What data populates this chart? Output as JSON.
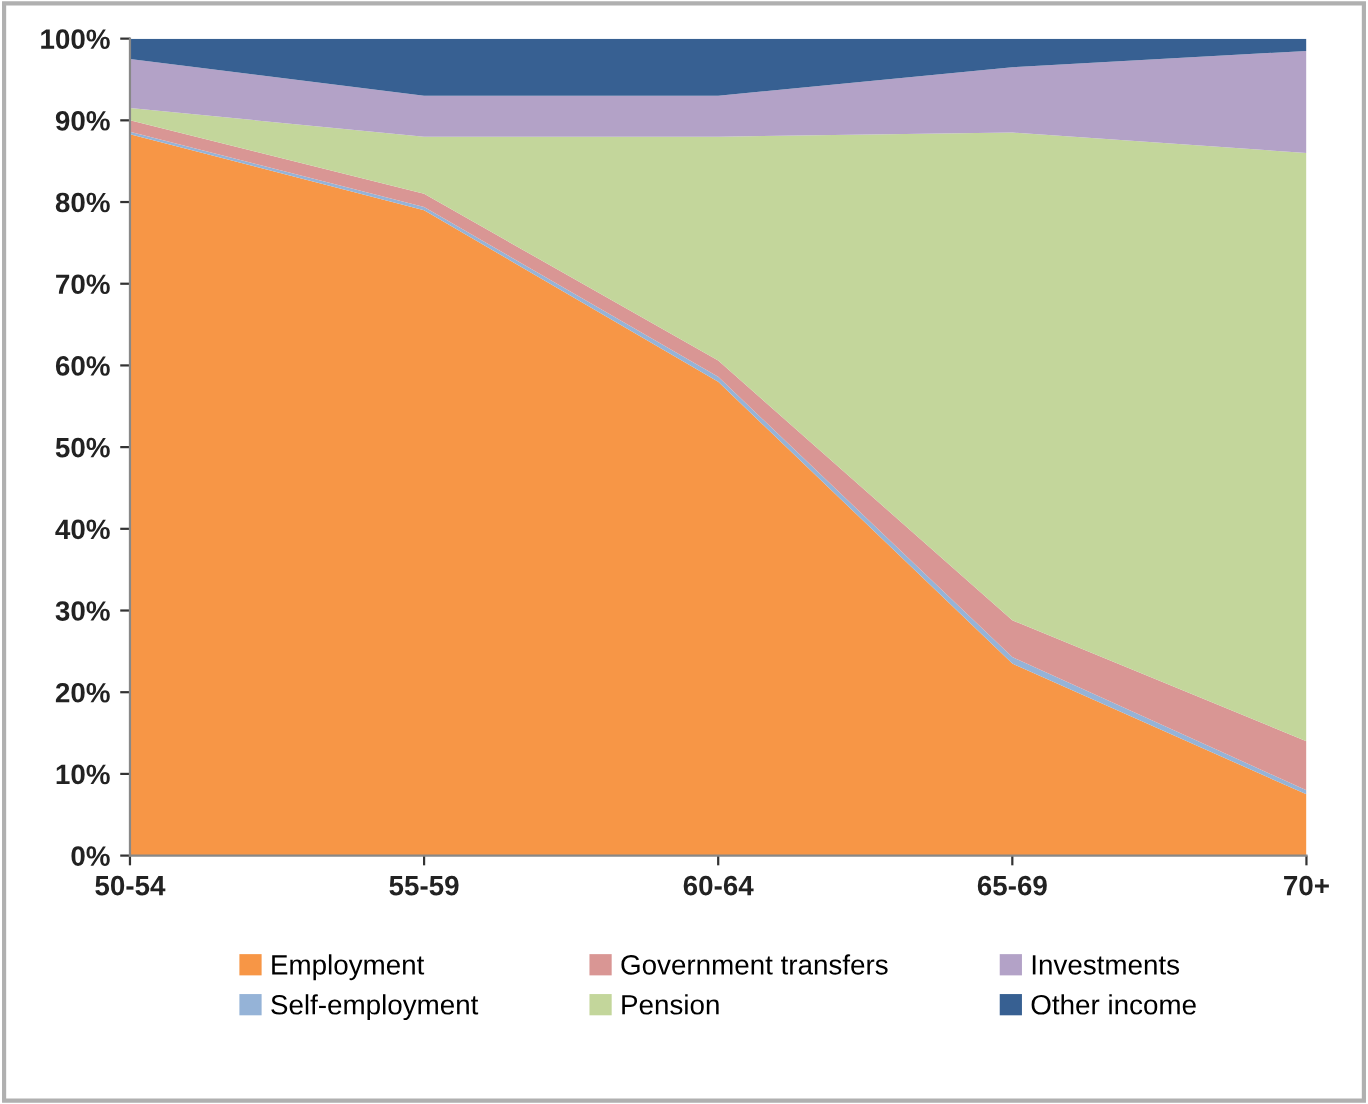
{
  "chart_data": {
    "type": "area",
    "stacked": true,
    "categories": [
      "50-54",
      "55-59",
      "60-64",
      "65-69",
      "70+"
    ],
    "series": [
      {
        "name": "Employment",
        "color": "#f79646",
        "values": [
          88.3,
          79,
          58,
          23.5,
          7.5
        ]
      },
      {
        "name": "Self-employment",
        "color": "#95b3d7",
        "values": [
          0.3,
          0.4,
          0.6,
          0.8,
          0.5
        ]
      },
      {
        "name": "Government transfers",
        "color": "#d99694",
        "values": [
          1.4,
          1.6,
          2,
          4.5,
          6
        ]
      },
      {
        "name": "Pension",
        "color": "#c3d69b",
        "values": [
          1.5,
          7,
          27.4,
          59.7,
          72
        ]
      },
      {
        "name": "Investments",
        "color": "#b3a2c7",
        "values": [
          6,
          5,
          5,
          8,
          12.5
        ]
      },
      {
        "name": "Other income",
        "color": "#376092",
        "values": [
          2.5,
          7,
          7,
          3.5,
          1.5
        ]
      }
    ],
    "ylim": [
      0,
      100
    ],
    "yticks": [
      {
        "value": 0,
        "label": "0%"
      },
      {
        "value": 10,
        "label": "10%"
      },
      {
        "value": 20,
        "label": "20%"
      },
      {
        "value": 30,
        "label": "30%"
      },
      {
        "value": 40,
        "label": "40%"
      },
      {
        "value": 50,
        "label": "50%"
      },
      {
        "value": 60,
        "label": "60%"
      },
      {
        "value": 70,
        "label": "70%"
      },
      {
        "value": 80,
        "label": "80%"
      },
      {
        "value": 90,
        "label": "90%"
      },
      {
        "value": 100,
        "label": "100%"
      }
    ],
    "grid": false,
    "legend": "bottom"
  }
}
